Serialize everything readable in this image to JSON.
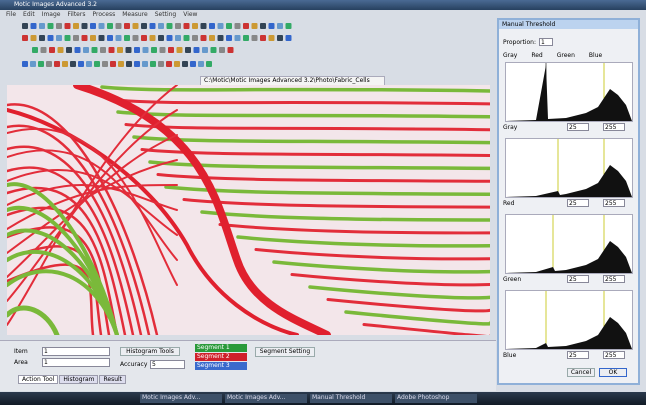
{
  "window": {
    "title": "Motic Images Advanced 3.2",
    "menu": [
      "File",
      "Edit",
      "Image",
      "Filters",
      "Process",
      "Measure",
      "Setting",
      "View"
    ],
    "tab": "C:\\Motic\\Motic Images Advanced 3.2\\Photo\\Fabric_Cells"
  },
  "dialog": {
    "title": "Manual Threshold",
    "proportion_label": "Proportion:",
    "proportion": "1",
    "channels": [
      "Gray",
      "Red",
      "Green",
      "Blue"
    ],
    "panels": [
      {
        "label": "Gray",
        "low": "25",
        "high": "255"
      },
      {
        "label": "Red",
        "low": "25",
        "high": "255"
      },
      {
        "label": "Green",
        "low": "25",
        "high": "255"
      },
      {
        "label": "Blue",
        "low": "25",
        "high": "255"
      }
    ],
    "cancel": "Cancel",
    "ok": "OK"
  },
  "bottom": {
    "fields": [
      {
        "label": "Item",
        "value": "1"
      },
      {
        "label": "Area",
        "value": "1"
      }
    ],
    "histogram_button": "Histogram Tools",
    "accuracy_label": "Accuracy",
    "accuracy": "5",
    "segments": [
      "Segment 1",
      "Segment 2",
      "Segment 3"
    ],
    "segment_button": "Segment Setting",
    "tabs": [
      "Action Tool",
      "Histogram",
      "Result"
    ]
  },
  "taskbar": [
    "Motic Images Adv...",
    "Motic Images Adv...",
    "Manual Threshold",
    "Adobe Photoshop"
  ]
}
